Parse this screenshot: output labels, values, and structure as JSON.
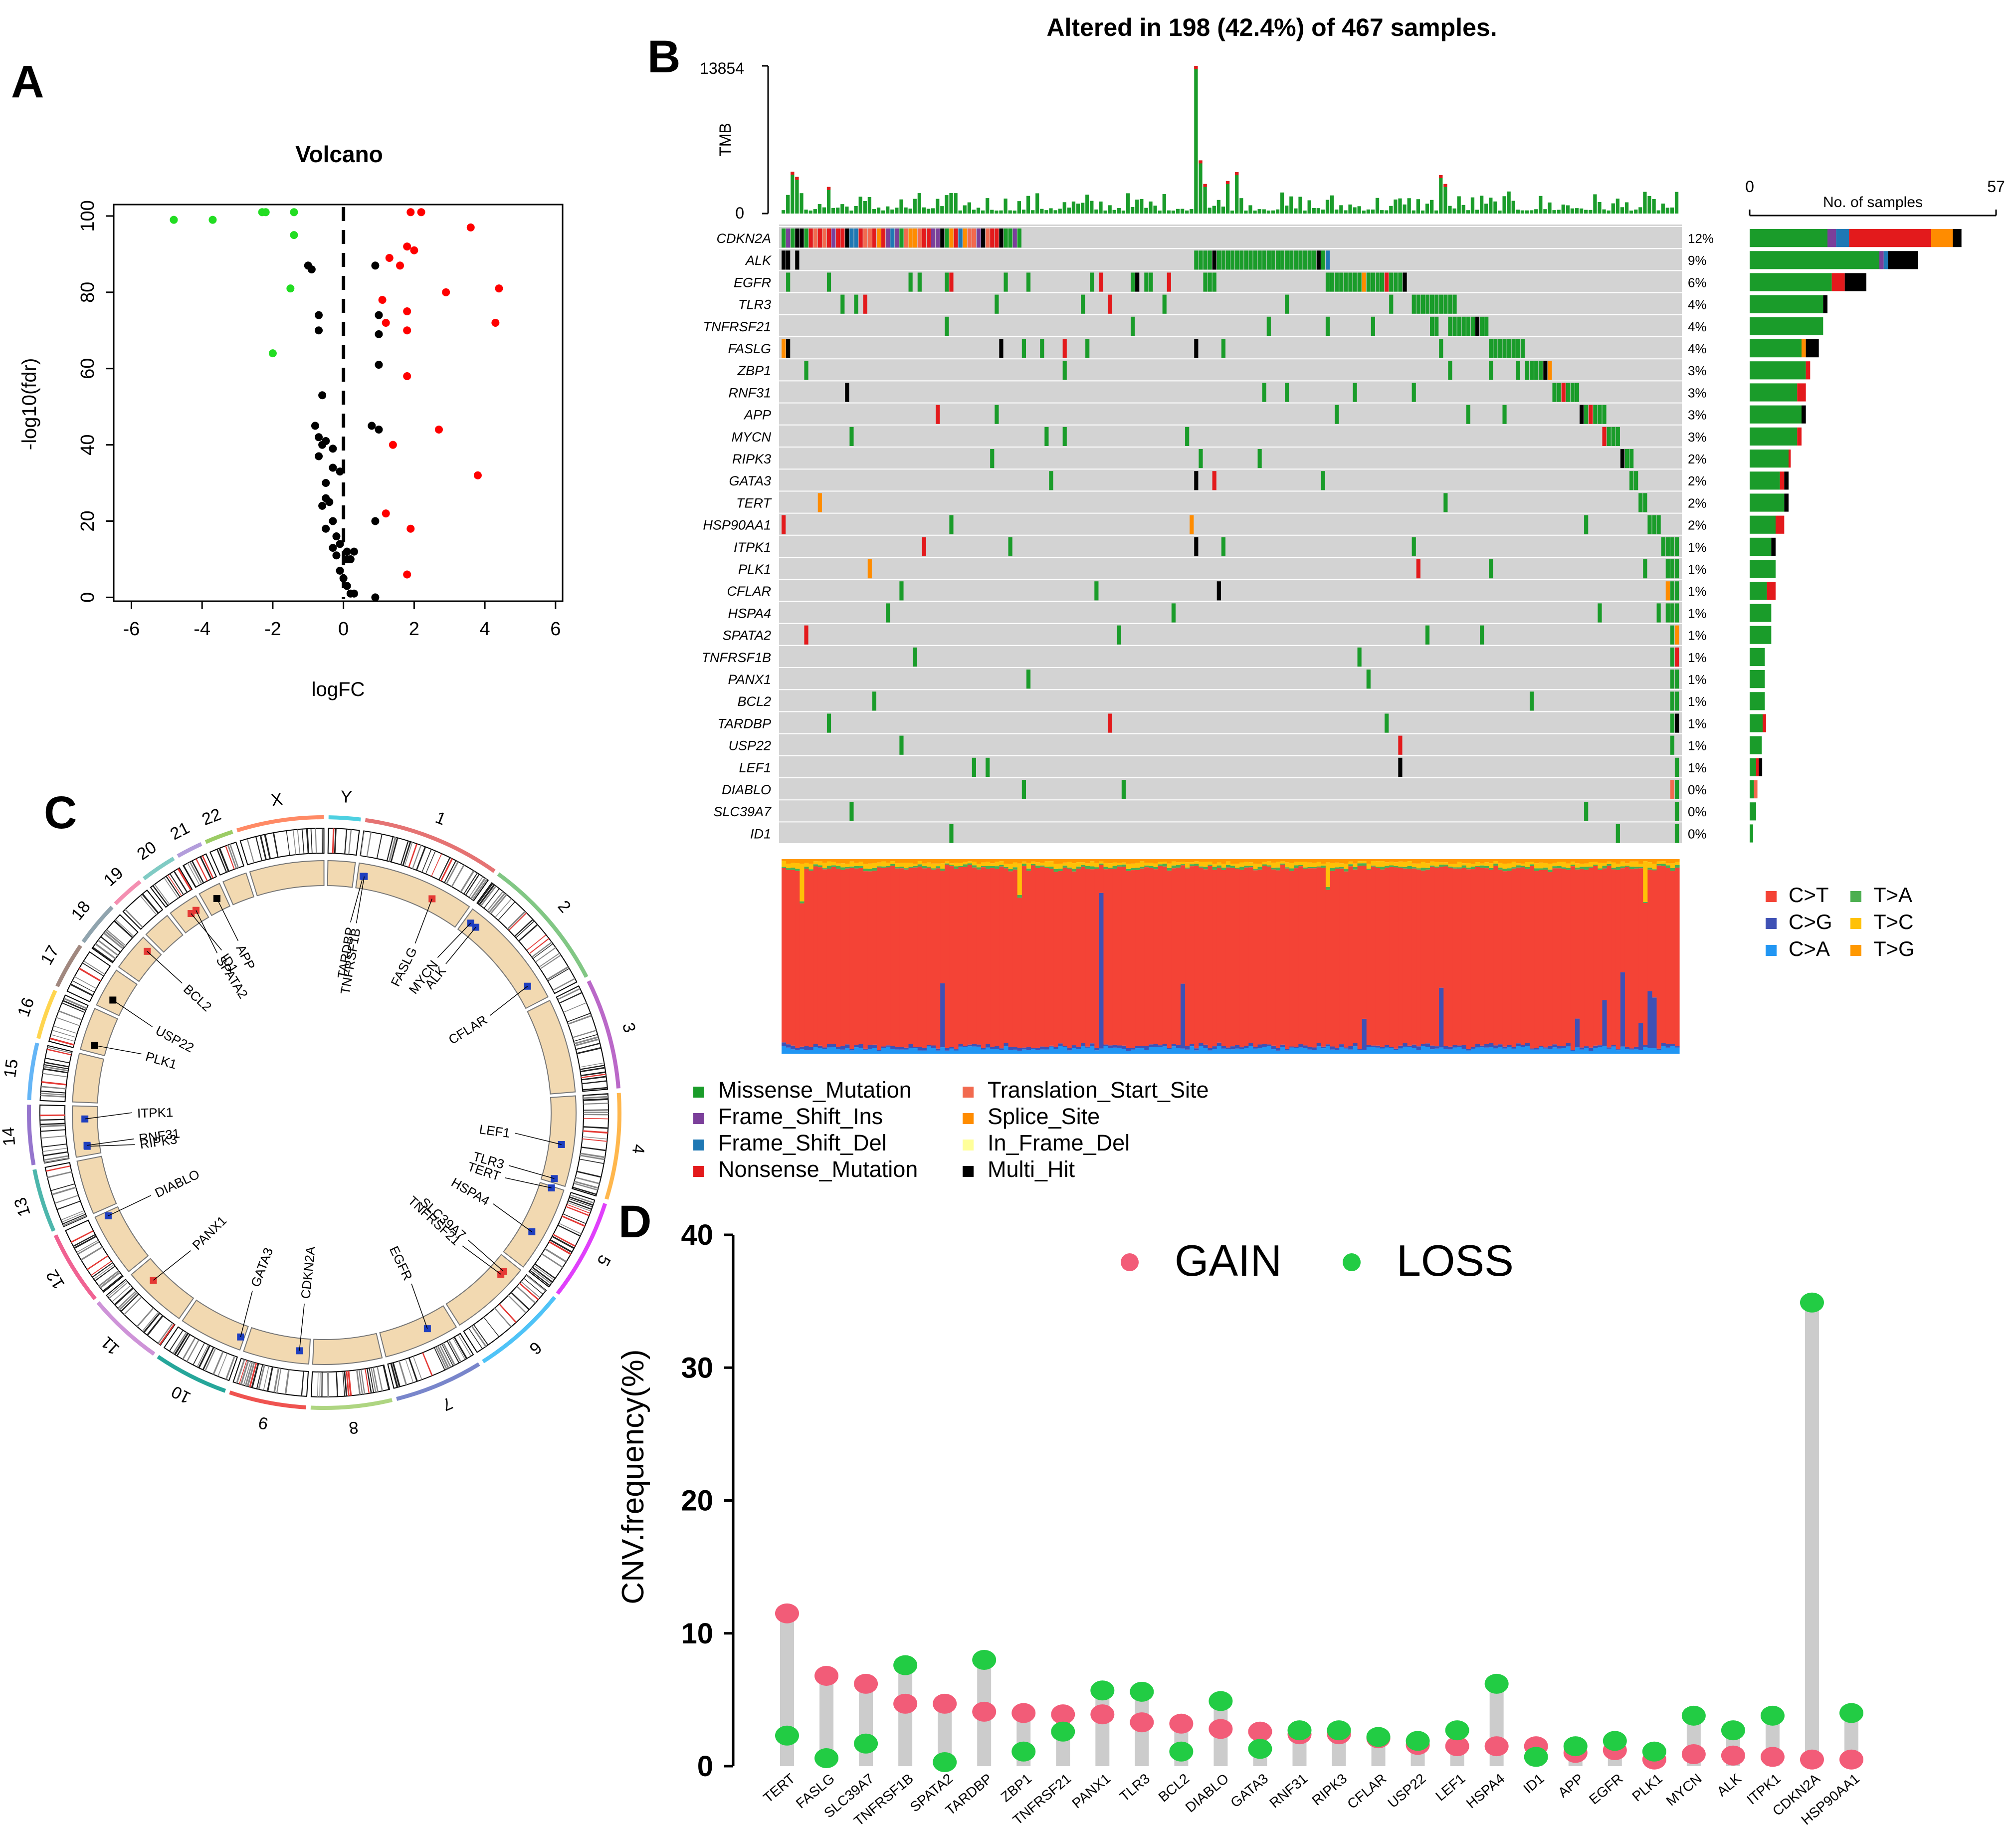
{
  "panel_labels": {
    "a": "A",
    "b": "B",
    "c": "C",
    "d": "D"
  },
  "colors": {
    "up": "#ff0000",
    "down": "#22dd22",
    "ns": "#000000",
    "missense": "#1a9c2a",
    "frame_shift_ins": "#7b3f9a",
    "frame_shift_del": "#1f78b4",
    "nonsense": "#e31a1c",
    "translation_start": "#f26a4f",
    "splice": "#ff8c00",
    "in_frame_del": "#ffff99",
    "multi_hit": "#000000",
    "c_t": "#f44336",
    "c_g": "#3f51b5",
    "c_a": "#2196f3",
    "t_a": "#4caf50",
    "t_c": "#ffc107",
    "t_g": "#ff9800",
    "gain": "#f25c78",
    "loss": "#22cc44",
    "stem": "#cccccc",
    "grid_bg": "#d3d3d3"
  },
  "chart_data": [
    {
      "id": "volcano",
      "type": "scatter",
      "title": "Volcano",
      "xlabel": "logFC",
      "ylabel": "-log10(fdr)",
      "xlim": [
        -6.5,
        6.2
      ],
      "ylim": [
        -1,
        103
      ],
      "xticks": [
        -6,
        -4,
        -2,
        0,
        2,
        4,
        6
      ],
      "yticks": [
        0,
        20,
        40,
        60,
        80,
        100
      ],
      "series": [
        {
          "name": "down",
          "points": [
            [
              -4.8,
              99
            ],
            [
              -3.7,
              99
            ],
            [
              -2.3,
              101
            ],
            [
              -2.2,
              101
            ],
            [
              -1.4,
              101
            ],
            [
              -1.4,
              95
            ],
            [
              -1.5,
              81
            ],
            [
              -2.0,
              64
            ]
          ]
        },
        {
          "name": "up",
          "points": [
            [
              1.9,
              101
            ],
            [
              2.2,
              101
            ],
            [
              1.8,
              92
            ],
            [
              2.0,
              91
            ],
            [
              3.6,
              97
            ],
            [
              1.3,
              89
            ],
            [
              1.6,
              87
            ],
            [
              4.4,
              81
            ],
            [
              2.9,
              80
            ],
            [
              4.3,
              72
            ],
            [
              1.1,
              78
            ],
            [
              1.8,
              75
            ],
            [
              1.2,
              72
            ],
            [
              1.8,
              70
            ],
            [
              1.8,
              58
            ],
            [
              2.7,
              44
            ],
            [
              1.4,
              40
            ],
            [
              3.8,
              32
            ],
            [
              1.2,
              22
            ],
            [
              1.9,
              18
            ],
            [
              1.8,
              6
            ]
          ]
        },
        {
          "name": "ns",
          "points": [
            [
              -1.0,
              87
            ],
            [
              -0.9,
              86
            ],
            [
              0.9,
              87
            ],
            [
              -0.7,
              74
            ],
            [
              -0.7,
              70
            ],
            [
              1.0,
              74
            ],
            [
              1.0,
              69
            ],
            [
              1.0,
              61
            ],
            [
              -0.6,
              53
            ],
            [
              -0.8,
              45
            ],
            [
              -0.7,
              42
            ],
            [
              -0.6,
              40
            ],
            [
              -0.5,
              41
            ],
            [
              -0.3,
              39
            ],
            [
              -0.7,
              37
            ],
            [
              0.8,
              45
            ],
            [
              1.0,
              44
            ],
            [
              -0.3,
              34
            ],
            [
              -0.1,
              33
            ],
            [
              -0.5,
              30
            ],
            [
              -0.5,
              26
            ],
            [
              -0.4,
              25
            ],
            [
              -0.6,
              24
            ],
            [
              -0.3,
              20
            ],
            [
              -0.5,
              18
            ],
            [
              -0.2,
              16
            ],
            [
              0.9,
              20
            ],
            [
              -0.1,
              14
            ],
            [
              -0.3,
              13
            ],
            [
              -0.2,
              11
            ],
            [
              0.1,
              12
            ],
            [
              0.1,
              10
            ],
            [
              0.3,
              12
            ],
            [
              0.2,
              10
            ],
            [
              -0.1,
              7
            ],
            [
              0.0,
              5
            ],
            [
              0.1,
              3
            ],
            [
              0.2,
              1
            ],
            [
              0.3,
              1
            ],
            [
              0.9,
              0
            ]
          ]
        }
      ]
    },
    {
      "id": "tmb",
      "type": "bar",
      "ylabel": "TMB",
      "ymax_label": "13854",
      "ymin_label": "0",
      "n_samples": 198,
      "spike_sample": 91,
      "spike_value": 13854
    },
    {
      "id": "oncoplot",
      "type": "heatmap",
      "title": "Altered in 198 (42.4%) of 467 samples.",
      "genes": [
        "CDKN2A",
        "ALK",
        "EGFR",
        "TLR3",
        "TNFRSF21",
        "FASLG",
        "ZBP1",
        "RNF31",
        "APP",
        "MYCN",
        "RIPK3",
        "GATA3",
        "TERT",
        "HSP90AA1",
        "ITPK1",
        "PLK1",
        "CFLAR",
        "HSPA4",
        "SPATA2",
        "TNFRSF1B",
        "PANX1",
        "BCL2",
        "TARDBP",
        "USP22",
        "LEF1",
        "DIABLO",
        "SLC39A7",
        "ID1"
      ],
      "percents": [
        "12%",
        "9%",
        "6%",
        "4%",
        "4%",
        "4%",
        "3%",
        "3%",
        "3%",
        "3%",
        "2%",
        "2%",
        "2%",
        "2%",
        "1%",
        "1%",
        "1%",
        "1%",
        "1%",
        "1%",
        "1%",
        "1%",
        "1%",
        "1%",
        "1%",
        "0%",
        "0%",
        "0%"
      ],
      "side_bar": {
        "title": "No. of samples",
        "xmin_label": "0",
        "xmax_label": "57",
        "max": 57,
        "rows": [
          [
            {
              "t": "missense",
              "v": 18
            },
            {
              "t": "frame_shift_ins",
              "v": 2
            },
            {
              "t": "frame_shift_del",
              "v": 3
            },
            {
              "t": "nonsense",
              "v": 19
            },
            {
              "t": "splice",
              "v": 5
            },
            {
              "t": "multi_hit",
              "v": 2
            }
          ],
          [
            {
              "t": "missense",
              "v": 30
            },
            {
              "t": "frame_shift_ins",
              "v": 1
            },
            {
              "t": "frame_shift_del",
              "v": 1
            },
            {
              "t": "multi_hit",
              "v": 7
            }
          ],
          [
            {
              "t": "missense",
              "v": 19
            },
            {
              "t": "nonsense",
              "v": 3
            },
            {
              "t": "multi_hit",
              "v": 5
            }
          ],
          [
            {
              "t": "missense",
              "v": 17
            },
            {
              "t": "multi_hit",
              "v": 1
            }
          ],
          [
            {
              "t": "missense",
              "v": 17
            }
          ],
          [
            {
              "t": "missense",
              "v": 12
            },
            {
              "t": "splice",
              "v": 1
            },
            {
              "t": "multi_hit",
              "v": 3
            }
          ],
          [
            {
              "t": "missense",
              "v": 13
            },
            {
              "t": "nonsense",
              "v": 1
            }
          ],
          [
            {
              "t": "missense",
              "v": 11
            },
            {
              "t": "nonsense",
              "v": 2
            }
          ],
          [
            {
              "t": "missense",
              "v": 12
            },
            {
              "t": "multi_hit",
              "v": 1
            }
          ],
          [
            {
              "t": "missense",
              "v": 11
            },
            {
              "t": "nonsense",
              "v": 1
            }
          ],
          [
            {
              "t": "missense",
              "v": 9
            },
            {
              "t": "nonsense",
              "v": 0.5
            }
          ],
          [
            {
              "t": "missense",
              "v": 7
            },
            {
              "t": "nonsense",
              "v": 1
            },
            {
              "t": "multi_hit",
              "v": 1
            }
          ],
          [
            {
              "t": "missense",
              "v": 8
            },
            {
              "t": "multi_hit",
              "v": 1
            }
          ],
          [
            {
              "t": "missense",
              "v": 6
            },
            {
              "t": "nonsense",
              "v": 2
            }
          ],
          [
            {
              "t": "missense",
              "v": 5
            },
            {
              "t": "multi_hit",
              "v": 1
            }
          ],
          [
            {
              "t": "missense",
              "v": 6
            }
          ],
          [
            {
              "t": "missense",
              "v": 4
            },
            {
              "t": "nonsense",
              "v": 2
            }
          ],
          [
            {
              "t": "missense",
              "v": 5
            }
          ],
          [
            {
              "t": "missense",
              "v": 5
            }
          ],
          [
            {
              "t": "missense",
              "v": 3.5
            }
          ],
          [
            {
              "t": "missense",
              "v": 3.5
            }
          ],
          [
            {
              "t": "missense",
              "v": 3.5
            }
          ],
          [
            {
              "t": "missense",
              "v": 3
            },
            {
              "t": "nonsense",
              "v": 0.8
            }
          ],
          [
            {
              "t": "missense",
              "v": 2.8
            }
          ],
          [
            {
              "t": "missense",
              "v": 1.5
            },
            {
              "t": "nonsense",
              "v": 0.6
            },
            {
              "t": "multi_hit",
              "v": 0.8
            }
          ],
          [
            {
              "t": "missense",
              "v": 1
            },
            {
              "t": "translation_start",
              "v": 0.8
            }
          ],
          [
            {
              "t": "missense",
              "v": 1.5
            }
          ],
          [
            {
              "t": "missense",
              "v": 0.8
            }
          ]
        ]
      }
    },
    {
      "id": "titv",
      "type": "bar",
      "subtype": "stacked-100",
      "legend": [
        "C>T",
        "T>A",
        "C>G",
        "T>C",
        "C>A",
        "T>G"
      ]
    },
    {
      "id": "circos",
      "type": "other",
      "chromosomes": [
        "1",
        "2",
        "3",
        "4",
        "5",
        "6",
        "7",
        "8",
        "9",
        "10",
        "11",
        "12",
        "13",
        "14",
        "15",
        "16",
        "17",
        "18",
        "19",
        "20",
        "21",
        "22",
        "X",
        "Y"
      ],
      "gene_labels": [
        "TARDBP",
        "TNFRSF1B",
        "FASLG",
        "MYCN",
        "ALK",
        "CFLAR",
        "LEF1",
        "TLR3",
        "TERT",
        "HSPA4",
        "SLC39A7",
        "TNFRSF21",
        "EGFR",
        "CDKN2A",
        "GATA3",
        "PANX1",
        "DIABLO",
        "ITPK1",
        "RIPK3",
        "RNF31",
        "PLK1",
        "USP22",
        "BCL2",
        "ID1",
        "SPATA2",
        "APP"
      ]
    },
    {
      "id": "cnv",
      "type": "scatter",
      "subtype": "dumbbell",
      "ylabel": "CNV.frequency(%)",
      "ylim": [
        0,
        40
      ],
      "yticks": [
        0,
        10,
        20,
        30,
        40
      ],
      "legend": [
        "GAIN",
        "LOSS"
      ],
      "categories": [
        "TERT",
        "FASLG",
        "SLC39A7",
        "TNFRSF1B",
        "SPATA2",
        "TARDBP",
        "ZBP1",
        "TNFRSF21",
        "PANX1",
        "TLR3",
        "BCL2",
        "DIABLO",
        "GATA3",
        "RNF31",
        "RIPK3",
        "CFLAR",
        "USP22",
        "LEF1",
        "HSPA4",
        "ID1",
        "APP",
        "EGFR",
        "PLK1",
        "MYCN",
        "ALK",
        "ITPK1",
        "CDKN2A",
        "HSP90AA1"
      ],
      "gain": [
        11.5,
        6.8,
        6.2,
        4.7,
        4.7,
        4.1,
        4.0,
        3.9,
        3.9,
        3.3,
        3.2,
        2.8,
        2.6,
        2.4,
        2.4,
        2.1,
        1.6,
        1.5,
        1.5,
        1.5,
        1.0,
        1.2,
        0.5,
        0.9,
        0.8,
        0.7,
        0.5,
        0.5
      ],
      "loss": [
        2.3,
        0.6,
        1.7,
        7.6,
        0.3,
        8.0,
        1.1,
        2.6,
        5.7,
        5.6,
        1.1,
        4.9,
        1.3,
        2.7,
        2.7,
        2.2,
        1.9,
        2.7,
        6.2,
        0.7,
        1.5,
        1.9,
        1.1,
        3.8,
        2.7,
        3.8,
        34.9,
        4.0
      ]
    }
  ],
  "legends": {
    "variants_col1": [
      "Missense_Mutation",
      "Frame_Shift_Ins",
      "Frame_Shift_Del",
      "Nonsense_Mutation"
    ],
    "variants_col2": [
      "Translation_Start_Site",
      "Splice_Site",
      "In_Frame_Del",
      "Multi_Hit"
    ],
    "variant_keys_col1": [
      "missense",
      "frame_shift_ins",
      "frame_shift_del",
      "nonsense"
    ],
    "variant_keys_col2": [
      "translation_start",
      "splice",
      "in_frame_del",
      "multi_hit"
    ],
    "titv_keys": [
      "c_t",
      "t_a",
      "c_g",
      "t_c",
      "c_a",
      "t_g"
    ]
  }
}
